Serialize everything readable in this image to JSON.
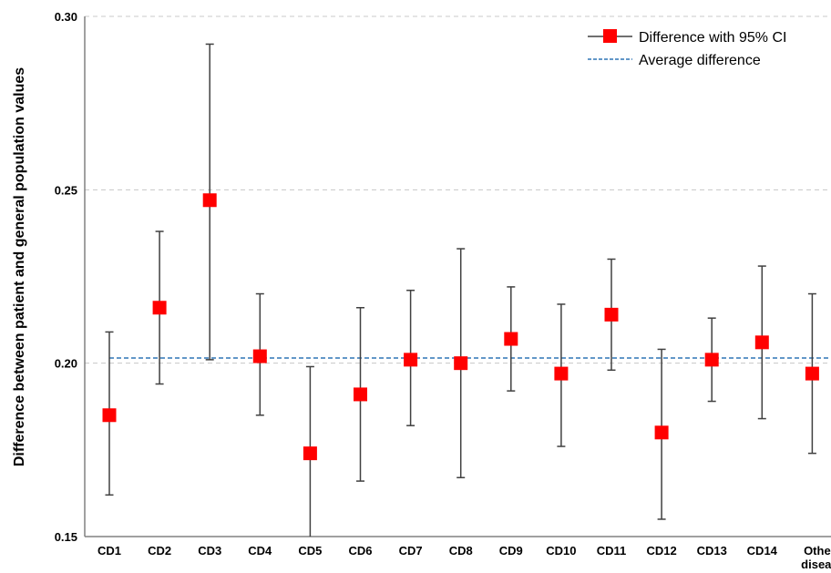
{
  "chart_data": {
    "type": "scatter",
    "title": "",
    "xlabel": "",
    "ylabel": "Difference between patient and general population values",
    "ylim": [
      0.15,
      0.3
    ],
    "yticks": [
      "0.15",
      "0.20",
      "0.25",
      "0.30"
    ],
    "grid": true,
    "legend_placement": "top-right",
    "categories": [
      "CD1",
      "CD2",
      "CD3",
      "CD4",
      "CD5",
      "CD6",
      "CD7",
      "CD8",
      "CD9",
      "CD10",
      "CD11",
      "CD12",
      "CD13",
      "CD14",
      "Other diseas"
    ],
    "series": [
      {
        "name": "Difference with 95% CI",
        "values": [
          0.185,
          0.216,
          0.247,
          0.202,
          0.174,
          0.191,
          0.201,
          0.2,
          0.207,
          0.197,
          0.214,
          0.18,
          0.201,
          0.206,
          0.197
        ],
        "ci_low": [
          0.162,
          0.194,
          0.201,
          0.185,
          0.15,
          0.166,
          0.182,
          0.167,
          0.192,
          0.176,
          0.198,
          0.155,
          0.189,
          0.184,
          0.174
        ],
        "ci_high": [
          0.209,
          0.238,
          0.292,
          0.22,
          0.199,
          0.216,
          0.221,
          0.233,
          0.222,
          0.217,
          0.23,
          0.204,
          0.213,
          0.228,
          0.22
        ],
        "color": "#ff0000"
      },
      {
        "name": "Average difference",
        "value": 0.2015,
        "color": "#2e75b6",
        "style": "dashed"
      }
    ],
    "colors": {
      "marker": "#ff0000",
      "errorbar": "#404040",
      "average": "#2e75b6",
      "grid": "#c8c8c8",
      "axis": "#808080"
    }
  }
}
